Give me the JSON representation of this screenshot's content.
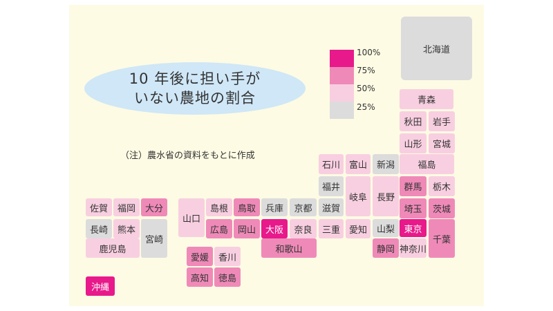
{
  "title": {
    "line1": "10 年後に担い手が",
    "line2": "いない農地の割合"
  },
  "note": "（注）農水省の資料をもとに作成",
  "legend": {
    "labels": [
      "100%",
      "75%",
      "50%",
      "25%"
    ],
    "colors": [
      "#e8198b",
      "#ef8ab8",
      "#f8cfe0",
      "#dcdcdc"
    ]
  },
  "prefectures": [
    {
      "id": "hokkaido",
      "name": "北海道",
      "level": 0
    },
    {
      "id": "aomori",
      "name": "青森",
      "level": 1
    },
    {
      "id": "akita",
      "name": "秋田",
      "level": 1
    },
    {
      "id": "iwate",
      "name": "岩手",
      "level": 1
    },
    {
      "id": "yamagata",
      "name": "山形",
      "level": 1
    },
    {
      "id": "miyagi",
      "name": "宮城",
      "level": 1
    },
    {
      "id": "fukushima",
      "name": "福島",
      "level": 1
    },
    {
      "id": "niigata",
      "name": "新潟",
      "level": 0
    },
    {
      "id": "gunma",
      "name": "群馬",
      "level": 2
    },
    {
      "id": "tochigi",
      "name": "栃木",
      "level": 1
    },
    {
      "id": "saitama",
      "name": "埼玉",
      "level": 2
    },
    {
      "id": "ibaraki",
      "name": "茨城",
      "level": 2
    },
    {
      "id": "tokyo",
      "name": "東京",
      "level": 3
    },
    {
      "id": "chiba",
      "name": "千葉",
      "level": 2
    },
    {
      "id": "kanagawa",
      "name": "神奈川",
      "level": 1
    },
    {
      "id": "yamanashi",
      "name": "山梨",
      "level": 0
    },
    {
      "id": "shizuoka",
      "name": "静岡",
      "level": 2
    },
    {
      "id": "nagano",
      "name": "長野",
      "level": 1
    },
    {
      "id": "toyama",
      "name": "富山",
      "level": 1
    },
    {
      "id": "ishikawa",
      "name": "石川",
      "level": 1
    },
    {
      "id": "fukui",
      "name": "福井",
      "level": 0
    },
    {
      "id": "gifu",
      "name": "岐阜",
      "level": 1
    },
    {
      "id": "aichi",
      "name": "愛知",
      "level": 1
    },
    {
      "id": "shiga",
      "name": "滋賀",
      "level": 0
    },
    {
      "id": "mie",
      "name": "三重",
      "level": 1
    },
    {
      "id": "kyoto",
      "name": "京都",
      "level": 0
    },
    {
      "id": "nara",
      "name": "奈良",
      "level": 1
    },
    {
      "id": "wakayama",
      "name": "和歌山",
      "level": 2
    },
    {
      "id": "osaka",
      "name": "大阪",
      "level": 3
    },
    {
      "id": "hyogo",
      "name": "兵庫",
      "level": 0
    },
    {
      "id": "tottori",
      "name": "鳥取",
      "level": 2
    },
    {
      "id": "okayama",
      "name": "岡山",
      "level": 2
    },
    {
      "id": "shimane",
      "name": "島根",
      "level": 1
    },
    {
      "id": "hiroshima",
      "name": "広島",
      "level": 2
    },
    {
      "id": "yamaguchi",
      "name": "山口",
      "level": 1
    },
    {
      "id": "ehime",
      "name": "愛媛",
      "level": 2
    },
    {
      "id": "kagawa",
      "name": "香川",
      "level": 1
    },
    {
      "id": "kochi",
      "name": "高知",
      "level": 2
    },
    {
      "id": "tokushima",
      "name": "徳島",
      "level": 2
    },
    {
      "id": "saga",
      "name": "佐賀",
      "level": 1
    },
    {
      "id": "fukuoka",
      "name": "福岡",
      "level": 1
    },
    {
      "id": "oita",
      "name": "大分",
      "level": 2
    },
    {
      "id": "nagasaki",
      "name": "長崎",
      "level": 0
    },
    {
      "id": "kumamoto",
      "name": "熊本",
      "level": 1
    },
    {
      "id": "miyazaki",
      "name": "宮崎",
      "level": 0
    },
    {
      "id": "kagoshima",
      "name": "鹿児島",
      "level": 1
    },
    {
      "id": "okinawa",
      "name": "沖縄",
      "level": 3
    }
  ]
}
